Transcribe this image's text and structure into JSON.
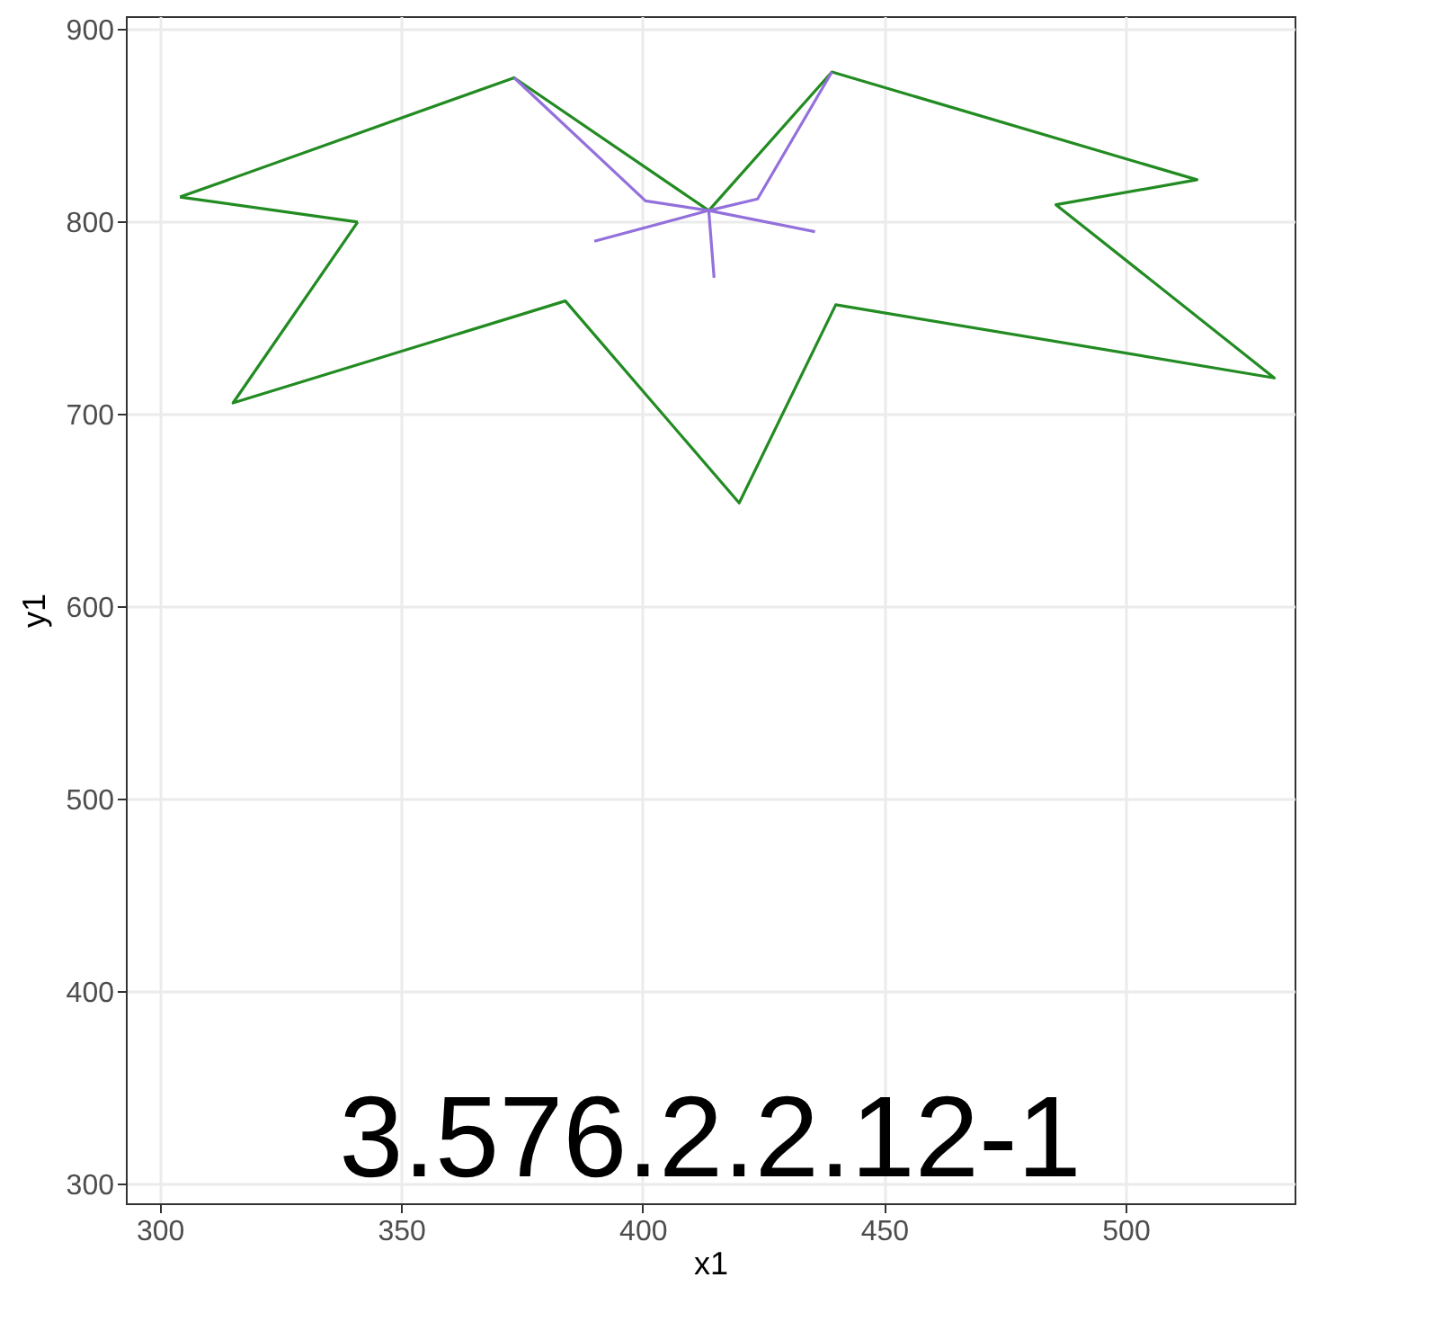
{
  "chart_data": {
    "type": "line",
    "xlabel": "x1",
    "ylabel": "y1",
    "annotations": [
      "3.576.2.2.12-1"
    ],
    "xlim": [
      293,
      535
    ],
    "ylim": [
      290,
      907
    ],
    "xticks": [
      300,
      350,
      400,
      450,
      500
    ],
    "yticks": [
      300,
      400,
      500,
      600,
      700,
      800,
      900
    ],
    "grid": true,
    "legend": false,
    "series": [
      {
        "color": "#228b22",
        "x": [
          304.2,
          373.4,
          413.7,
          439.2,
          514.8,
          485.6,
          530.8,
          440,
          420,
          384,
          315.2,
          341
        ],
        "values": [
          813,
          875,
          806,
          878,
          822,
          809,
          719,
          757,
          654,
          759,
          706,
          800
        ]
      },
      {
        "color": "#228b22",
        "x": [
          341,
          304.2
        ],
        "values": [
          800,
          813
        ]
      },
      {
        "color": "#9370db",
        "x": [
          373.4,
          400.6,
          413.7,
          423.8,
          439.2
        ],
        "values": [
          875,
          811,
          806,
          812,
          878
        ]
      },
      {
        "color": "#9370db",
        "x": [
          413.7,
          414.8
        ],
        "values": [
          806,
          771
        ]
      },
      {
        "color": "#9370db",
        "x": [
          390,
          413.7,
          435.7
        ],
        "values": [
          790,
          806,
          795
        ]
      }
    ]
  }
}
